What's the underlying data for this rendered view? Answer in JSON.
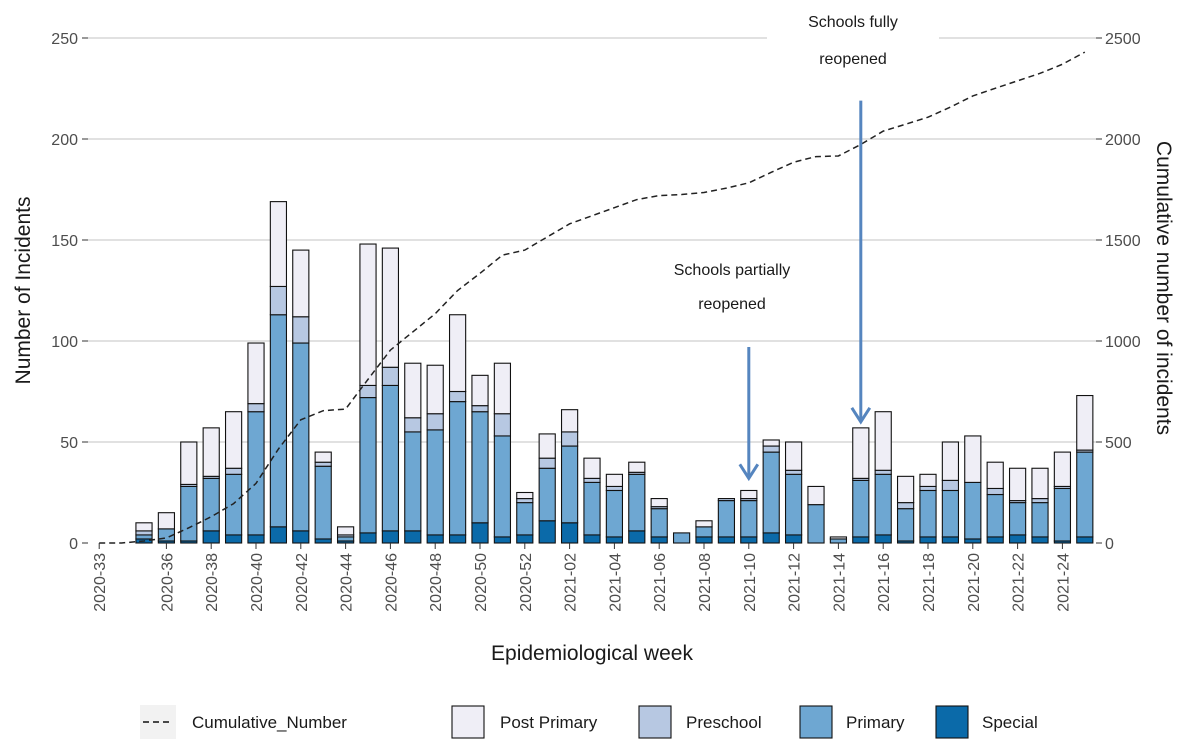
{
  "chart_data": {
    "type": "bar",
    "stacked": true,
    "xlabel": "Epidemiological week",
    "ylabel": "Number of Incidents",
    "y2label": "Cumulative number of incidents",
    "ylim": [
      0,
      250
    ],
    "y2lim": [
      0,
      2500
    ],
    "yticks": [
      "0",
      "50",
      "100",
      "150",
      "200",
      "250"
    ],
    "y2ticks": [
      "0",
      "500",
      "1000",
      "1500",
      "2000",
      "2500"
    ],
    "grid": "horizontal",
    "legend_position": "bottom",
    "weeks": [
      "2020-33",
      "2020-34",
      "2020-35",
      "2020-36",
      "2020-37",
      "2020-38",
      "2020-39",
      "2020-40",
      "2020-41",
      "2020-42",
      "2020-43",
      "2020-44",
      "2020-45",
      "2020-46",
      "2020-47",
      "2020-48",
      "2020-49",
      "2020-50",
      "2020-51",
      "2020-52",
      "2021-01",
      "2021-02",
      "2021-03",
      "2021-04",
      "2021-05",
      "2021-06",
      "2021-07",
      "2021-08",
      "2021-09",
      "2021-10",
      "2021-11",
      "2021-12",
      "2021-13",
      "2021-14",
      "2021-15",
      "2021-16",
      "2021-17",
      "2021-18",
      "2021-19",
      "2021-20",
      "2021-21",
      "2021-22",
      "2021-23",
      "2021-24",
      "2021-25"
    ],
    "tick_labels": [
      "2020-33",
      "2020-36",
      "2020-38",
      "2020-40",
      "2020-42",
      "2020-44",
      "2020-46",
      "2020-48",
      "2020-50",
      "2020-52",
      "2021-02",
      "2021-04",
      "2021-06",
      "2021-08",
      "2021-10",
      "2021-12",
      "2021-14",
      "2021-16",
      "2021-18",
      "2021-20",
      "2021-22",
      "2021-24"
    ],
    "series": [
      {
        "name": "Special",
        "color": "#0b6aa9",
        "values": [
          0,
          0,
          2,
          1,
          1,
          6,
          4,
          4,
          8,
          6,
          2,
          1,
          5,
          6,
          6,
          4,
          4,
          10,
          3,
          4,
          11,
          10,
          4,
          3,
          6,
          3,
          0,
          3,
          3,
          3,
          5,
          4,
          0,
          0,
          3,
          4,
          1,
          3,
          3,
          2,
          3,
          4,
          3,
          1,
          3
        ]
      },
      {
        "name": "Primary",
        "color": "#6ea7d2",
        "values": [
          0,
          0,
          2,
          6,
          27,
          26,
          30,
          61,
          105,
          93,
          36,
          2,
          67,
          72,
          49,
          52,
          66,
          55,
          50,
          16,
          26,
          38,
          26,
          23,
          28,
          14,
          5,
          5,
          18,
          18,
          40,
          30,
          19,
          2,
          28,
          30,
          16,
          23,
          23,
          28,
          21,
          16,
          17,
          26,
          42
        ]
      },
      {
        "name": "Preschool",
        "color": "#b7c8e2",
        "values": [
          0,
          0,
          2,
          0,
          1,
          1,
          3,
          4,
          14,
          13,
          2,
          1,
          6,
          9,
          7,
          8,
          5,
          3,
          11,
          2,
          5,
          7,
          2,
          2,
          1,
          1,
          0,
          0,
          1,
          1,
          3,
          2,
          0,
          0,
          1,
          2,
          3,
          2,
          5,
          0,
          3,
          1,
          2,
          1,
          1
        ]
      },
      {
        "name": "Post Primary",
        "color": "#efeef6",
        "values": [
          0,
          0,
          4,
          8,
          21,
          24,
          28,
          30,
          42,
          33,
          5,
          4,
          70,
          59,
          27,
          24,
          38,
          15,
          25,
          3,
          12,
          11,
          10,
          6,
          5,
          4,
          0,
          3,
          0,
          4,
          3,
          14,
          9,
          1,
          25,
          29,
          13,
          6,
          19,
          23,
          13,
          16,
          15,
          17,
          27
        ]
      }
    ],
    "cumulative": {
      "name": "Cumulative_Number",
      "values": [
        0,
        0,
        10,
        25,
        75,
        130,
        195,
        295,
        465,
        610,
        655,
        663,
        810,
        955,
        1045,
        1135,
        1250,
        1335,
        1425,
        1450,
        1515,
        1580,
        1620,
        1660,
        1700,
        1720,
        1725,
        1735,
        1757,
        1783,
        1835,
        1885,
        1913,
        1916,
        1973,
        2039,
        2073,
        2108,
        2158,
        2213,
        2251,
        2288,
        2325,
        2370,
        2430
      ]
    },
    "annotations": [
      {
        "text_lines": [
          "Schools partially",
          "reopened"
        ],
        "week": "2021-10",
        "arrow_from_value": 97,
        "arrow_to_value": 32
      },
      {
        "text_lines": [
          "Schools fully",
          "reopened"
        ],
        "week": "2021-15",
        "arrow_from_value": 219,
        "arrow_to_value": 60
      }
    ]
  },
  "legend": [
    {
      "type": "line",
      "label": "Cumulative_Number"
    },
    {
      "type": "box",
      "label": "Post Primary",
      "color": "#efeef6"
    },
    {
      "type": "box",
      "label": "Preschool",
      "color": "#b7c8e2"
    },
    {
      "type": "box",
      "label": "Primary",
      "color": "#6ea7d2"
    },
    {
      "type": "box",
      "label": "Special",
      "color": "#0b6aa9"
    }
  ],
  "colors": {
    "grid": "#cfcfcf",
    "bar_outline": "#111111",
    "arrow": "#5585bf",
    "cumulative_line": "#222222"
  }
}
